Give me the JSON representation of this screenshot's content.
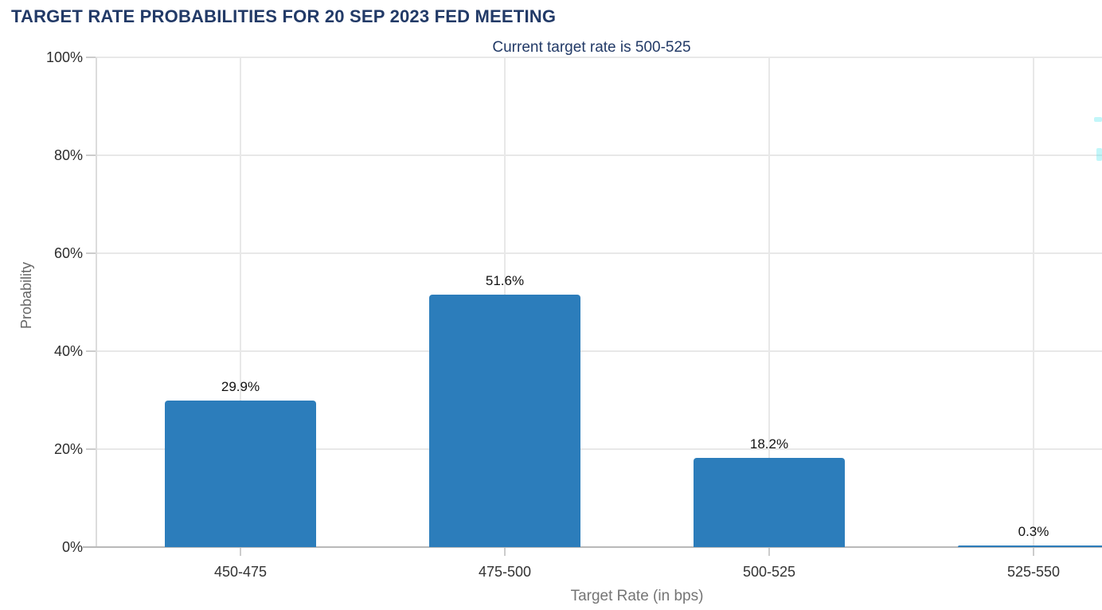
{
  "title": "TARGET RATE PROBABILITIES FOR 20 SEP 2023 FED MEETING",
  "subtitle": "Current target rate is 500-525",
  "colors": {
    "title_navy": "#223a67",
    "bar_blue": "#2c7dbb",
    "gridline": "#e8e8e8",
    "x_axis_line": "#b9b9b9",
    "y_axis_line": "#dcdcdc",
    "tick_label": "#2d2d2d",
    "axis_title_gray": "#757575",
    "edge_artifact_cyan": "#50e6ee"
  },
  "chart_data": {
    "type": "bar",
    "title": "TARGET RATE PROBABILITIES FOR 20 SEP 2023 FED MEETING",
    "subtitle": "Current target rate is 500-525",
    "categories": [
      "450-475",
      "475-500",
      "500-525",
      "525-550"
    ],
    "values": [
      29.9,
      51.6,
      18.2,
      0.3
    ],
    "value_labels": [
      "29.9%",
      "51.6%",
      "18.2%",
      "0.3%"
    ],
    "xlabel": "Target Rate (in bps)",
    "ylabel": "Probability",
    "ylim": [
      0,
      100
    ],
    "ytick_step": 20,
    "ytick_labels": [
      "0%",
      "20%",
      "40%",
      "60%",
      "80%",
      "100%"
    ],
    "grid": true,
    "legend": "none",
    "bar_color": "#2c7dbb",
    "note": "fourth category bar is nearly zero height (0.3%)"
  }
}
